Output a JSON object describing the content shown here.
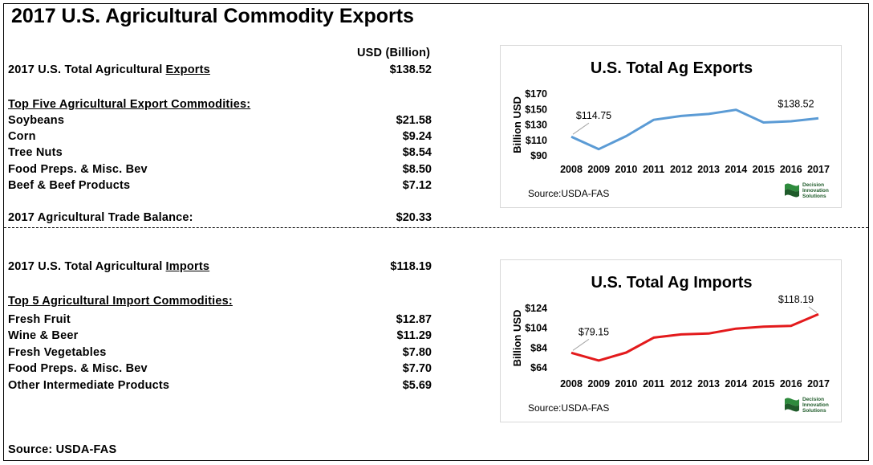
{
  "title": "2017 U.S. Agricultural Commodity Exports",
  "usd_header": "USD (Billion)",
  "exports": {
    "total_label_pre": "2017 U.S. Total Agricultural",
    "total_label_u": "Exports",
    "total_value": "$138.52",
    "top_header": "Top Five Agricultural Export Commodities:",
    "items": [
      {
        "label": "Soybeans",
        "value": "$21.58"
      },
      {
        "label": "Corn",
        "value": "$9.24"
      },
      {
        "label": "Tree Nuts",
        "value": "$8.54"
      },
      {
        "label": "Food Preps. & Misc. Bev",
        "value": "$8.50"
      },
      {
        "label": "Beef & Beef Products",
        "value": "$7.12"
      }
    ],
    "balance_label": "2017 Agricultural Trade Balance:",
    "balance_value": "$20.33"
  },
  "imports": {
    "total_label_pre": "2017 U.S. Total Agricultural",
    "total_label_u": "Imports",
    "total_value": "$118.19",
    "top_header": "Top 5 Agricultural Import Commodities:",
    "items": [
      {
        "label": "Fresh Fruit",
        "value": "$12.87"
      },
      {
        "label": "Wine & Beer",
        "value": "$11.29"
      },
      {
        "label": "Fresh Vegetables",
        "value": "$7.80"
      },
      {
        "label": "Food Preps. & Misc. Bev",
        "value": "$7.70"
      },
      {
        "label": "Other Intermediate Products",
        "value": "$5.69"
      }
    ]
  },
  "footer_source": "Source: USDA-FAS",
  "logo": {
    "line1": "Decision",
    "line2": "Innovation",
    "line3": "Solutions"
  },
  "chart_data": [
    {
      "type": "line",
      "title": "U.S. Total Ag Exports",
      "ylabel": "Billion  USD",
      "x": [
        "2008",
        "2009",
        "2010",
        "2011",
        "2012",
        "2013",
        "2014",
        "2015",
        "2016",
        "2017"
      ],
      "values": [
        114.75,
        98.6,
        115.5,
        136.5,
        141.5,
        144.1,
        149.5,
        133.1,
        134.7,
        138.52
      ],
      "ylim": [
        90,
        170
      ],
      "yticks": [
        "$90",
        "$110",
        "$130",
        "$150",
        "$170"
      ],
      "ytick_values": [
        90,
        110,
        130,
        150,
        170
      ],
      "labels": [
        {
          "index": 0,
          "text": "$114.75"
        },
        {
          "index": 9,
          "text": "$138.52"
        }
      ],
      "source": "Source:USDA-FAS",
      "color": "#5b9bd5",
      "grid": false
    },
    {
      "type": "line",
      "title": "U.S. Total Ag Imports",
      "ylabel": "Billion  USD",
      "x": [
        "2008",
        "2009",
        "2010",
        "2011",
        "2012",
        "2013",
        "2014",
        "2015",
        "2016",
        "2017"
      ],
      "values": [
        79.15,
        71.4,
        79.4,
        94.5,
        97.7,
        98.6,
        103.6,
        105.6,
        106.4,
        118.19
      ],
      "ylim": [
        64,
        124
      ],
      "yticks": [
        "$64",
        "$84",
        "$104",
        "$124"
      ],
      "ytick_values": [
        64,
        84,
        104,
        124
      ],
      "labels": [
        {
          "index": 0,
          "text": "$79.15"
        },
        {
          "index": 9,
          "text": "$118.19"
        }
      ],
      "source": "Source:USDA-FAS",
      "color": "#e31a1c",
      "grid": false
    }
  ]
}
